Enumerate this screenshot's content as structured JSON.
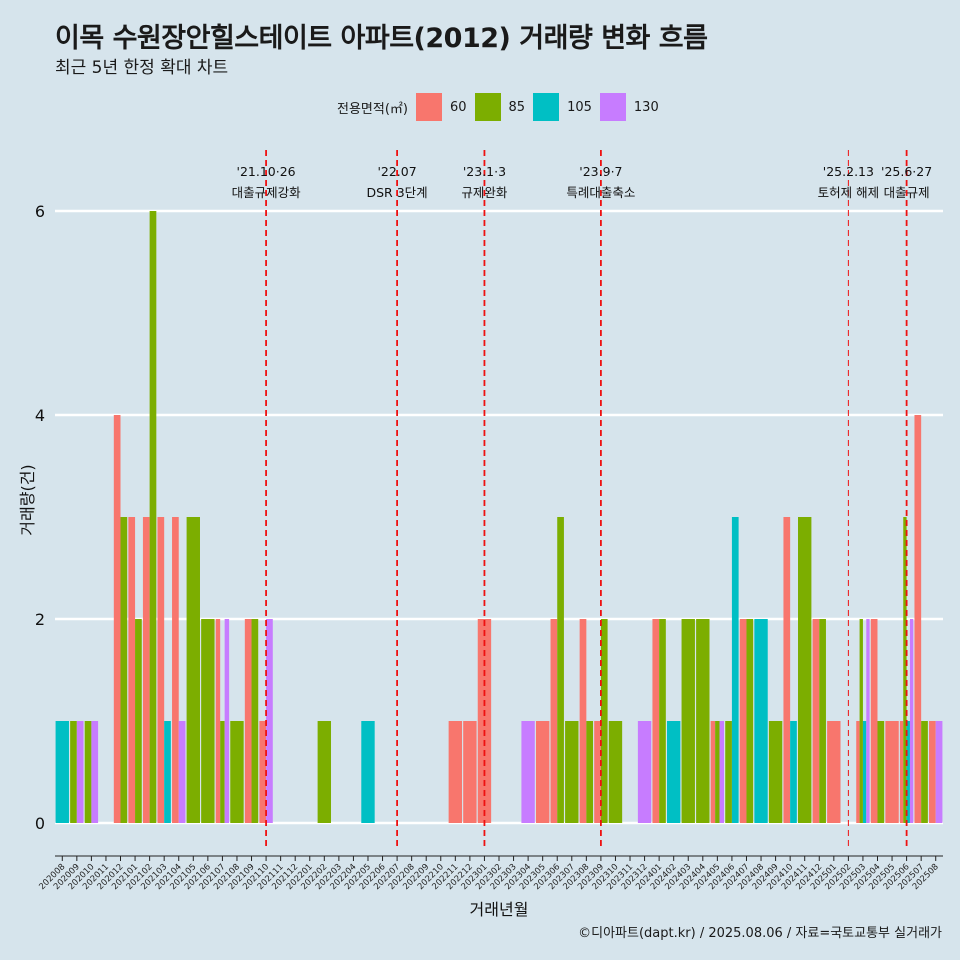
{
  "chart_data": {
    "type": "bar",
    "title": "이목 수원장안힐스테이트 아파트(2012) 거래량 변화 흐름",
    "subtitle": "최근 5년 한정 확대 차트",
    "xlabel": "거래년월",
    "ylabel": "거래량(건)",
    "ylim": [
      0,
      6
    ],
    "yticks": [
      0,
      2,
      4,
      6
    ],
    "grid": true,
    "legend_title": "전용면적(㎡)",
    "legend_position": "top",
    "categories": [
      "202008",
      "202009",
      "202010",
      "202011",
      "202012",
      "202101",
      "202102",
      "202103",
      "202104",
      "202105",
      "202106",
      "202107",
      "202108",
      "202109",
      "202110",
      "202111",
      "202112",
      "202201",
      "202202",
      "202203",
      "202204",
      "202205",
      "202206",
      "202207",
      "202208",
      "202209",
      "202210",
      "202211",
      "202212",
      "202301",
      "202302",
      "202303",
      "202304",
      "202305",
      "202306",
      "202307",
      "202308",
      "202309",
      "202310",
      "202311",
      "202312",
      "202401",
      "202402",
      "202403",
      "202404",
      "202405",
      "202406",
      "202407",
      "202408",
      "202409",
      "202410",
      "202411",
      "202412",
      "202501",
      "202502",
      "202503",
      "202504",
      "202505",
      "202506",
      "202507",
      "202508"
    ],
    "series": [
      {
        "name": "60",
        "color": "#f8766d",
        "values": [
          0,
          0,
          0,
          0,
          4,
          3,
          3,
          3,
          3,
          0,
          0,
          2,
          0,
          2,
          1,
          0,
          0,
          0,
          0,
          0,
          0,
          0,
          0,
          0,
          0,
          0,
          0,
          1,
          1,
          2,
          0,
          0,
          0,
          1,
          2,
          0,
          2,
          1,
          0,
          0,
          0,
          2,
          0,
          0,
          0,
          1,
          0,
          2,
          0,
          0,
          3,
          0,
          2,
          1,
          0,
          1,
          2,
          1,
          1,
          4,
          1
        ]
      },
      {
        "name": "85",
        "color": "#7cae00",
        "values": [
          0,
          1,
          1,
          0,
          3,
          2,
          6,
          0,
          0,
          3,
          2,
          1,
          1,
          2,
          0,
          0,
          0,
          0,
          1,
          0,
          0,
          0,
          0,
          0,
          0,
          0,
          0,
          0,
          0,
          0,
          0,
          0,
          0,
          0,
          3,
          1,
          1,
          2,
          1,
          0,
          0,
          2,
          0,
          2,
          2,
          1,
          1,
          2,
          0,
          1,
          0,
          3,
          2,
          0,
          0,
          2,
          1,
          0,
          3,
          1,
          0
        ]
      },
      {
        "name": "105",
        "color": "#00bfc4",
        "values": [
          1,
          0,
          0,
          0,
          0,
          0,
          0,
          1,
          0,
          0,
          0,
          0,
          0,
          0,
          0,
          0,
          0,
          0,
          0,
          0,
          0,
          1,
          0,
          0,
          0,
          0,
          0,
          0,
          0,
          0,
          0,
          0,
          0,
          0,
          0,
          0,
          0,
          0,
          0,
          0,
          0,
          0,
          1,
          0,
          0,
          0,
          3,
          0,
          2,
          0,
          1,
          0,
          0,
          0,
          0,
          1,
          0,
          0,
          1,
          0,
          0
        ]
      },
      {
        "name": "130",
        "color": "#c77cff",
        "values": [
          0,
          1,
          1,
          0,
          0,
          0,
          0,
          0,
          1,
          0,
          0,
          2,
          0,
          0,
          2,
          0,
          0,
          0,
          0,
          0,
          0,
          0,
          0,
          0,
          0,
          0,
          0,
          0,
          0,
          0,
          0,
          0,
          1,
          0,
          0,
          0,
          0,
          0,
          0,
          0,
          1,
          0,
          0,
          0,
          0,
          1,
          0,
          0,
          0,
          0,
          0,
          0,
          0,
          0,
          0,
          2,
          0,
          0,
          2,
          0,
          1
        ]
      }
    ],
    "events": [
      {
        "date": "'21.10·26",
        "label": "대출규제강화",
        "x": "202110",
        "bold": true
      },
      {
        "date": "'22.07",
        "label": "DSR 3단계",
        "x": "202207",
        "bold": true
      },
      {
        "date": "'23.1·3",
        "label": "규제완화",
        "x": "202301",
        "bold": true
      },
      {
        "date": "'23.9·7",
        "label": "특례대출축소",
        "x": "202309",
        "bold": true
      },
      {
        "date": "'25.2.13",
        "label": "토허제 해제",
        "x": "202502",
        "bold": false
      },
      {
        "date": "'25.6·27",
        "label": "대출규제",
        "x": "202506",
        "bold": true
      }
    ],
    "event_line_color": "#ee1111"
  },
  "caption": "©디아파트(dapt.kr) / 2025.08.06 / 자료=국토교통부 실거래가"
}
